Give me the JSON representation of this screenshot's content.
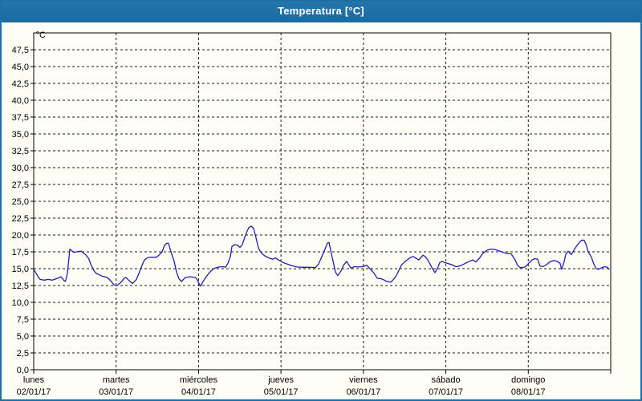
{
  "window": {
    "title": "Temperatura [°C]"
  },
  "colors": {
    "titlebar": "#1d6fa4",
    "window_border": "#1d6fa4",
    "background": "#fffef5",
    "line": "#1f1fb4",
    "grid": "#1a1a1a",
    "text": "#000000"
  },
  "chart_data": {
    "type": "line",
    "title": "Temperatura [°C]",
    "y_unit_label": "°C",
    "decimal_separator": ",",
    "ylim": [
      0,
      50
    ],
    "ytick_step": 2.5,
    "grid": "dashed",
    "legend_position": "none",
    "ytick_labels_top_to_bottom": [
      "47,5",
      "45,0",
      "42,5",
      "40,0",
      "37,5",
      "35,0",
      "32,5",
      "30,0",
      "27,5",
      "25,0",
      "22,5",
      "20,0",
      "17,5",
      "15,0",
      "12,5",
      "10,0",
      "7,5",
      "5,0",
      "2,5",
      "0,0"
    ],
    "x_days": [
      {
        "label": "lunes",
        "date": "02/01/17"
      },
      {
        "label": "martes",
        "date": "03/01/17"
      },
      {
        "label": "miércoles",
        "date": "04/01/17"
      },
      {
        "label": "jueves",
        "date": "05/01/17"
      },
      {
        "label": "viernes",
        "date": "06/01/17"
      },
      {
        "label": "sábado",
        "date": "07/01/17"
      },
      {
        "label": "domingo",
        "date": "08/01/17"
      }
    ],
    "series": [
      {
        "name": "Temperatura [°C]",
        "color": "#1f1fb4",
        "x_unit": "days_from_start",
        "points": [
          [
            0.0,
            14.9
          ],
          [
            0.049,
            13.9
          ],
          [
            0.078,
            13.4
          ],
          [
            0.127,
            13.3
          ],
          [
            0.175,
            13.4
          ],
          [
            0.224,
            13.3
          ],
          [
            0.273,
            13.5
          ],
          [
            0.331,
            13.8
          ],
          [
            0.37,
            13.2
          ],
          [
            0.385,
            13.1
          ],
          [
            0.409,
            14.3
          ],
          [
            0.438,
            17.9
          ],
          [
            0.487,
            17.4
          ],
          [
            0.516,
            17.5
          ],
          [
            0.574,
            17.6
          ],
          [
            0.628,
            17.1
          ],
          [
            0.667,
            16.5
          ],
          [
            0.691,
            15.7
          ],
          [
            0.73,
            14.7
          ],
          [
            0.759,
            14.3
          ],
          [
            0.828,
            13.9
          ],
          [
            0.891,
            13.7
          ],
          [
            0.935,
            13.2
          ],
          [
            0.974,
            12.6
          ],
          [
            1.013,
            12.5
          ],
          [
            1.052,
            12.9
          ],
          [
            1.1,
            13.6
          ],
          [
            1.12,
            13.7
          ],
          [
            1.159,
            13.2
          ],
          [
            1.198,
            12.8
          ],
          [
            1.246,
            13.4
          ],
          [
            1.276,
            14.3
          ],
          [
            1.314,
            15.5
          ],
          [
            1.344,
            16.3
          ],
          [
            1.383,
            16.65
          ],
          [
            1.441,
            16.7
          ],
          [
            1.49,
            16.7
          ],
          [
            1.519,
            17.0
          ],
          [
            1.558,
            17.5
          ],
          [
            1.587,
            18.45
          ],
          [
            1.616,
            18.8
          ],
          [
            1.636,
            18.75
          ],
          [
            1.665,
            17.5
          ],
          [
            1.704,
            16.1
          ],
          [
            1.733,
            14.5
          ],
          [
            1.762,
            13.5
          ],
          [
            1.792,
            13.1
          ],
          [
            1.84,
            13.7
          ],
          [
            1.899,
            13.8
          ],
          [
            1.957,
            13.7
          ],
          [
            1.977,
            13.5
          ],
          [
            2.006,
            12.8
          ],
          [
            2.025,
            12.4
          ],
          [
            2.054,
            13.1
          ],
          [
            2.093,
            13.8
          ],
          [
            2.123,
            14.3
          ],
          [
            2.171,
            14.9
          ],
          [
            2.2,
            15.1
          ],
          [
            2.249,
            15.25
          ],
          [
            2.298,
            15.3
          ],
          [
            2.327,
            15.2
          ],
          [
            2.356,
            15.8
          ],
          [
            2.386,
            16.8
          ],
          [
            2.405,
            18.3
          ],
          [
            2.434,
            18.55
          ],
          [
            2.473,
            18.5
          ],
          [
            2.502,
            18.15
          ],
          [
            2.531,
            18.6
          ],
          [
            2.561,
            19.7
          ],
          [
            2.59,
            20.6
          ],
          [
            2.609,
            21.1
          ],
          [
            2.638,
            21.3
          ],
          [
            2.668,
            21.0
          ],
          [
            2.697,
            19.6
          ],
          [
            2.726,
            18.1
          ],
          [
            2.745,
            17.6
          ],
          [
            2.774,
            17.2
          ],
          [
            2.804,
            16.9
          ],
          [
            2.852,
            16.6
          ],
          [
            2.901,
            16.4
          ],
          [
            2.93,
            16.6
          ],
          [
            2.969,
            16.3
          ],
          [
            2.998,
            16.1
          ],
          [
            3.047,
            15.8
          ],
          [
            3.096,
            15.6
          ],
          [
            3.144,
            15.4
          ],
          [
            3.193,
            15.25
          ],
          [
            3.271,
            15.2
          ],
          [
            3.349,
            15.2
          ],
          [
            3.417,
            15.15
          ],
          [
            3.456,
            15.7
          ],
          [
            3.485,
            16.5
          ],
          [
            3.534,
            17.9
          ],
          [
            3.563,
            18.8
          ],
          [
            3.583,
            18.9
          ],
          [
            3.612,
            17.2
          ],
          [
            3.631,
            16.1
          ],
          [
            3.661,
            14.5
          ],
          [
            3.69,
            13.95
          ],
          [
            3.729,
            14.7
          ],
          [
            3.758,
            15.5
          ],
          [
            3.797,
            16.1
          ],
          [
            3.826,
            15.5
          ],
          [
            3.846,
            15.1
          ],
          [
            3.894,
            15.3
          ],
          [
            3.943,
            15.25
          ],
          [
            3.992,
            15.3
          ],
          [
            4.04,
            15.5
          ],
          [
            4.079,
            15.0
          ],
          [
            4.118,
            14.5
          ],
          [
            4.167,
            13.6
          ],
          [
            4.216,
            13.5
          ],
          [
            4.255,
            13.3
          ],
          [
            4.284,
            13.1
          ],
          [
            4.333,
            13.0
          ],
          [
            4.372,
            13.5
          ],
          [
            4.401,
            14.0
          ],
          [
            4.459,
            15.5
          ],
          [
            4.508,
            16.1
          ],
          [
            4.576,
            16.7
          ],
          [
            4.605,
            16.8
          ],
          [
            4.644,
            16.5
          ],
          [
            4.673,
            16.3
          ],
          [
            4.722,
            17.0
          ],
          [
            4.751,
            16.8
          ],
          [
            4.78,
            16.3
          ],
          [
            4.829,
            15.2
          ],
          [
            4.868,
            14.4
          ],
          [
            4.897,
            15.0
          ],
          [
            4.926,
            15.9
          ],
          [
            4.955,
            16.1
          ],
          [
            4.984,
            15.9
          ],
          [
            5.014,
            15.8
          ],
          [
            5.043,
            15.7
          ],
          [
            5.072,
            15.6
          ],
          [
            5.121,
            15.3
          ],
          [
            5.15,
            15.35
          ],
          [
            5.188,
            15.5
          ],
          [
            5.237,
            15.8
          ],
          [
            5.286,
            16.1
          ],
          [
            5.325,
            16.3
          ],
          [
            5.364,
            16.0
          ],
          [
            5.403,
            16.5
          ],
          [
            5.452,
            17.3
          ],
          [
            5.5,
            17.75
          ],
          [
            5.549,
            17.9
          ],
          [
            5.598,
            17.85
          ],
          [
            5.656,
            17.6
          ],
          [
            5.724,
            17.3
          ],
          [
            5.792,
            17.2
          ],
          [
            5.841,
            16.3
          ],
          [
            5.87,
            15.5
          ],
          [
            5.899,
            15.15
          ],
          [
            5.948,
            15.2
          ],
          [
            5.977,
            15.4
          ],
          [
            6.006,
            15.8
          ],
          [
            6.045,
            16.3
          ],
          [
            6.084,
            16.5
          ],
          [
            6.113,
            16.4
          ],
          [
            6.142,
            15.4
          ],
          [
            6.181,
            15.3
          ],
          [
            6.22,
            15.6
          ],
          [
            6.259,
            16.0
          ],
          [
            6.308,
            16.2
          ],
          [
            6.347,
            16.1
          ],
          [
            6.386,
            15.8
          ],
          [
            6.405,
            14.9
          ],
          [
            6.434,
            16.0
          ],
          [
            6.454,
            17.1
          ],
          [
            6.483,
            17.6
          ],
          [
            6.522,
            17.1
          ],
          [
            6.571,
            18.1
          ],
          [
            6.62,
            18.9
          ],
          [
            6.649,
            19.25
          ],
          [
            6.678,
            19.2
          ],
          [
            6.698,
            18.7
          ],
          [
            6.727,
            17.5
          ],
          [
            6.766,
            16.7
          ],
          [
            6.795,
            15.7
          ],
          [
            6.824,
            15.0
          ],
          [
            6.853,
            14.9
          ],
          [
            6.883,
            15.1
          ],
          [
            6.922,
            15.3
          ],
          [
            6.961,
            15.2
          ],
          [
            6.98,
            14.9
          ]
        ]
      }
    ]
  }
}
